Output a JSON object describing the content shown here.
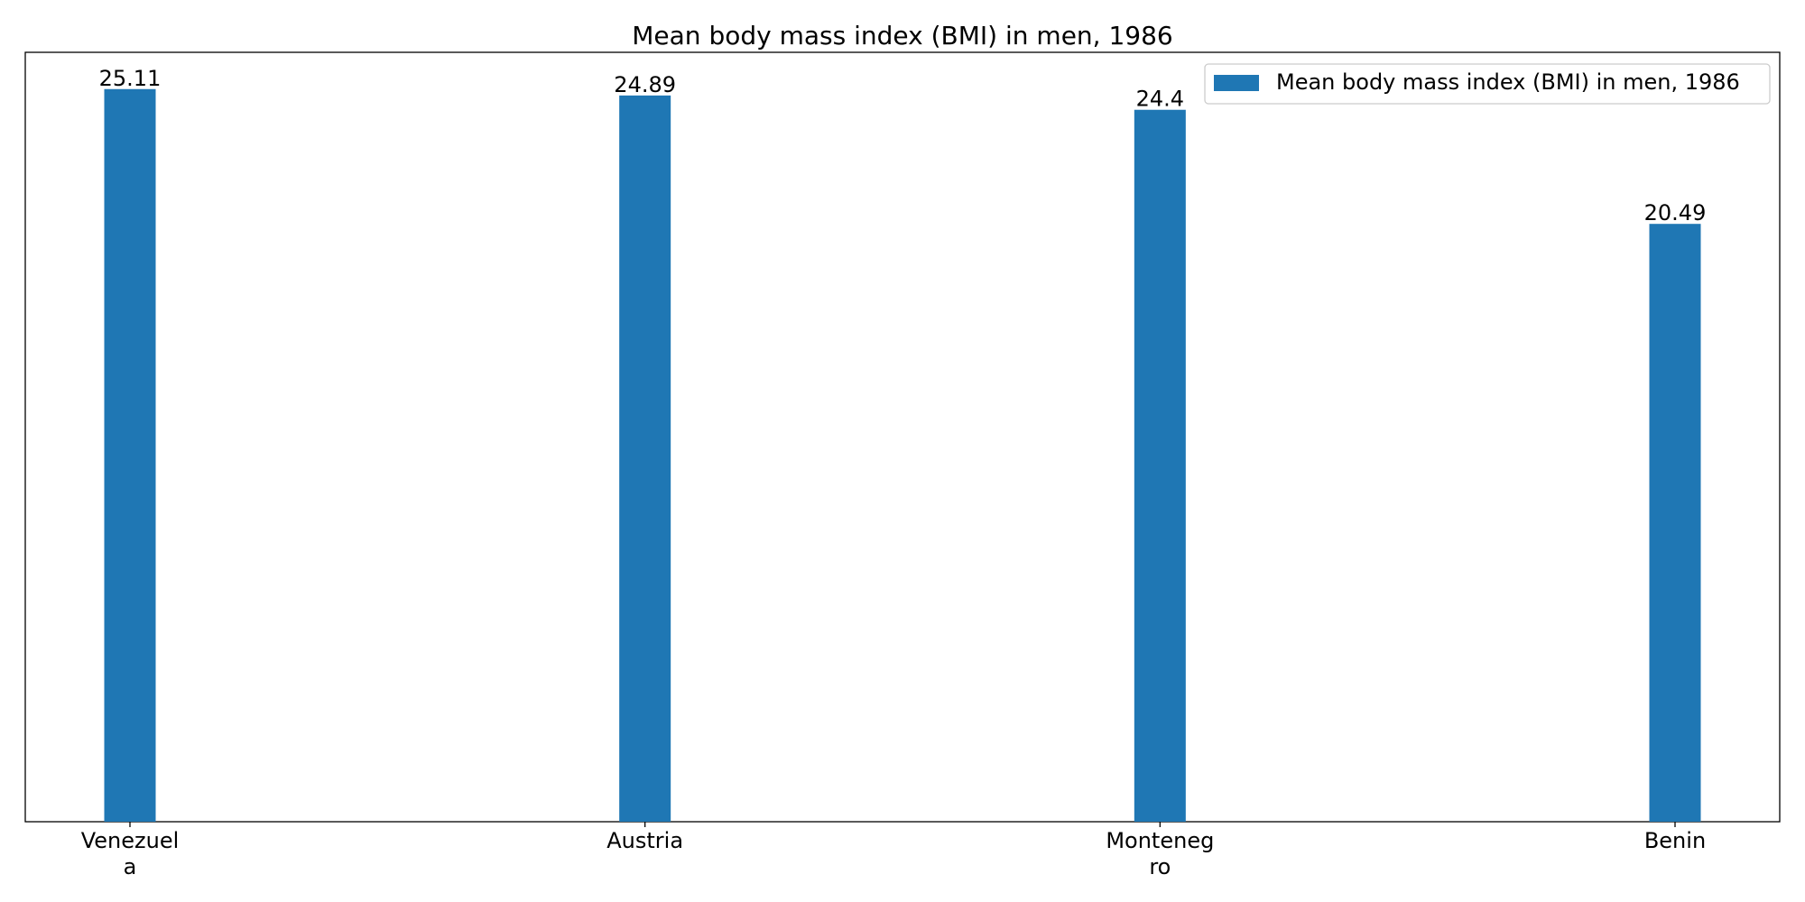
{
  "chart_data": {
    "type": "bar",
    "title": "Mean body mass index (BMI) in men, 1986",
    "categories": [
      "Venezuela",
      "Austria",
      "Montenegro",
      "Benin"
    ],
    "category_labels": [
      [
        "Venezuel",
        "a"
      ],
      [
        "Austria"
      ],
      [
        "Monteneg",
        "ro"
      ],
      [
        "Benin"
      ]
    ],
    "series": [
      {
        "name": "Mean body mass index (BMI) in men, 1986",
        "values": [
          25.11,
          24.89,
          24.4,
          20.49
        ],
        "value_labels": [
          "25.11",
          "24.89",
          "24.4",
          "20.49"
        ],
        "color": "#1f77b4"
      }
    ],
    "xlabel": "",
    "ylabel": "",
    "ylim": [
      0,
      26.37
    ],
    "y_axis_visible": false,
    "grid": false,
    "legend_position": "top-right"
  }
}
